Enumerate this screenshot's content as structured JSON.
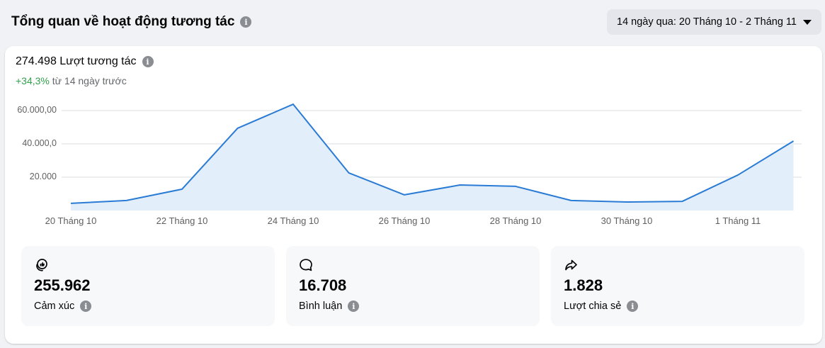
{
  "header": {
    "title": "Tổng quan về hoạt động tương tác",
    "info_icon": "i"
  },
  "date_range": {
    "label": "14 ngày qua: 20 Tháng 10 - 2 Tháng 11"
  },
  "summary": {
    "total_label": "274.498 Lượt tương tác",
    "change_value": "+34,3%",
    "change_suffix": " từ 14 ngày trước"
  },
  "colors": {
    "line": "#2a7bd5",
    "fill": "#e3eefb",
    "positive": "#31a24c",
    "gridline": "#dadde1"
  },
  "chart_data": {
    "type": "area",
    "title": "274.498 Lượt tương tác",
    "xlabel": "",
    "ylabel": "",
    "x": [
      "20 Tháng 10",
      "21 Tháng 10",
      "22 Tháng 10",
      "23 Tháng 10",
      "24 Tháng 10",
      "25 Tháng 10",
      "26 Tháng 10",
      "27 Tháng 10",
      "28 Tháng 10",
      "29 Tháng 10",
      "30 Tháng 10",
      "31 Tháng 10",
      "1 Tháng 11",
      "2 Tháng 11"
    ],
    "values": [
      4300,
      6000,
      12800,
      49400,
      63800,
      22600,
      9400,
      15300,
      14500,
      6000,
      5100,
      5500,
      21300,
      41700
    ],
    "x_tick_labels": [
      "20 Tháng 10",
      "22 Tháng 10",
      "24 Tháng 10",
      "26 Tháng 10",
      "28 Tháng 10",
      "30 Tháng 10",
      "1 Tháng 11"
    ],
    "y_tick_labels": [
      "60.000,00",
      "40.000,0",
      "20.000"
    ],
    "y_tick_values": [
      60000,
      40000,
      20000
    ],
    "ylim": [
      0,
      65000
    ],
    "grid": true,
    "legend": "none"
  },
  "metrics": [
    {
      "icon": "reactions-icon",
      "value": "255.962",
      "label": "Cảm xúc"
    },
    {
      "icon": "comment-icon",
      "value": "16.708",
      "label": "Bình luận"
    },
    {
      "icon": "share-icon",
      "value": "1.828",
      "label": "Lượt chia sẻ"
    }
  ]
}
